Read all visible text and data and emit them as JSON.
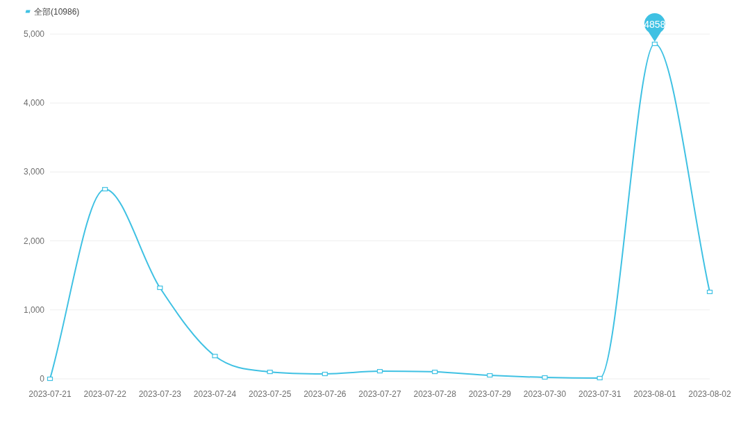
{
  "chart_data": {
    "type": "line",
    "categories": [
      "2023-07-21",
      "2023-07-22",
      "2023-07-23",
      "2023-07-24",
      "2023-07-25",
      "2023-07-26",
      "2023-07-27",
      "2023-07-28",
      "2023-07-29",
      "2023-07-30",
      "2023-07-31",
      "2023-08-01",
      "2023-08-02"
    ],
    "series": [
      {
        "name": "全部(10986)",
        "color": "#3fc1e3",
        "values": [
          0,
          2750,
          1320,
          330,
          100,
          70,
          110,
          100,
          50,
          20,
          10,
          4858,
          1260
        ]
      }
    ],
    "ylim": [
      0,
      5000
    ],
    "yticks": [
      0,
      {
        "value": 1000,
        "label": "1,000"
      },
      {
        "value": 2000,
        "label": "2,000"
      },
      {
        "value": 3000,
        "label": "3,000"
      },
      {
        "value": 4000,
        "label": "4,000"
      },
      {
        "value": 5000,
        "label": "5,000"
      }
    ],
    "annotations": [
      {
        "text": "4858",
        "x": "2023-08-01",
        "y": 4858
      }
    ],
    "grid": "y",
    "legend": "top left",
    "marker": "square",
    "line_style": "solid"
  }
}
